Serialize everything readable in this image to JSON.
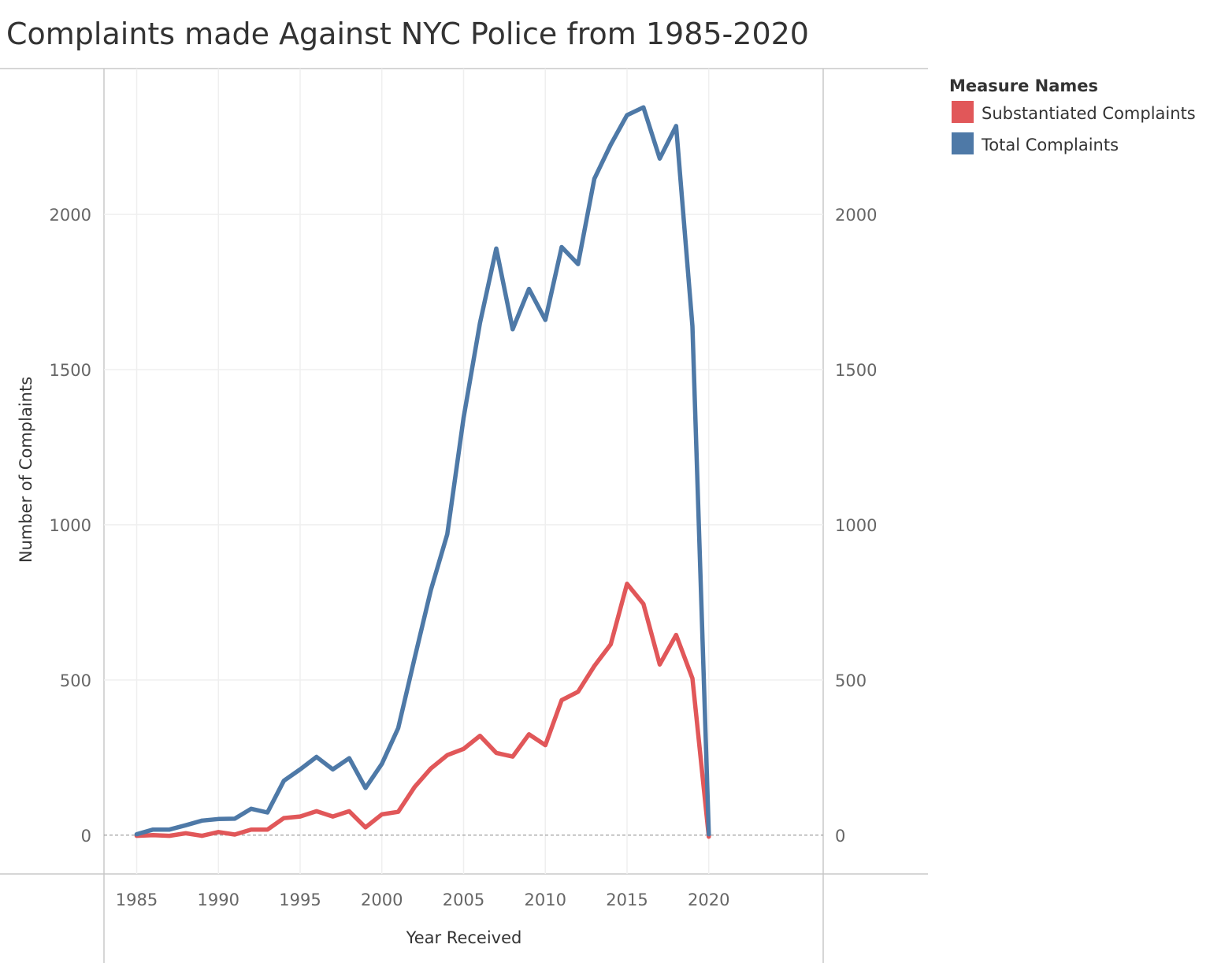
{
  "chart_data": {
    "type": "line",
    "title": "Complaints made Against NYC Police from 1985-2020",
    "xlabel": "Year Received",
    "ylabel": "Number of Complaints",
    "x": [
      1985,
      1986,
      1987,
      1988,
      1989,
      1990,
      1991,
      1992,
      1993,
      1994,
      1995,
      1996,
      1997,
      1998,
      1999,
      2000,
      2001,
      2002,
      2003,
      2004,
      2005,
      2006,
      2007,
      2008,
      2009,
      2010,
      2011,
      2012,
      2013,
      2014,
      2015,
      2016,
      2017,
      2018,
      2019,
      2020
    ],
    "xticks": [
      "1985",
      "1990",
      "1995",
      "2000",
      "2005",
      "2010",
      "2015",
      "2020"
    ],
    "yticks": [
      "0",
      "500",
      "1000",
      "1500",
      "2000"
    ],
    "xlim": [
      1983,
      2027
    ],
    "ylim": [
      -125,
      2470
    ],
    "grid": true,
    "dual_axis": true,
    "legend": {
      "title": "Measure Names",
      "position": "top-right"
    },
    "series": [
      {
        "name": "Substantiated Complaints",
        "color": "#e15759",
        "values": [
          -2,
          0,
          -2,
          6,
          -2,
          10,
          2,
          18,
          18,
          55,
          60,
          77,
          60,
          77,
          25,
          67,
          75,
          155,
          215,
          258,
          278,
          320,
          265,
          253,
          325,
          290,
          435,
          462,
          545,
          615,
          810,
          745,
          550,
          645,
          505,
          -5
        ]
      },
      {
        "name": "Total Complaints",
        "color": "#4e79a7",
        "values": [
          3,
          18,
          18,
          32,
          47,
          52,
          53,
          85,
          73,
          175,
          212,
          252,
          212,
          248,
          152,
          230,
          345,
          570,
          790,
          970,
          1345,
          1650,
          1890,
          1630,
          1760,
          1660,
          1895,
          1840,
          2115,
          2225,
          2320,
          2345,
          2180,
          2285,
          1640,
          3
        ]
      }
    ]
  }
}
